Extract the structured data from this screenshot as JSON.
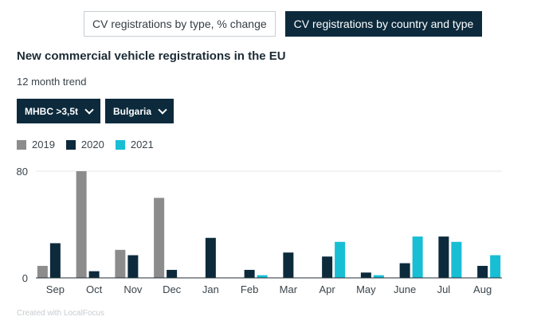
{
  "tabs": [
    {
      "label": "CV registrations by type, % change",
      "active": false
    },
    {
      "label": "CV registrations by country and type",
      "active": true
    }
  ],
  "title": "New commercial vehicle registrations in the EU",
  "subtitle": "12 month trend",
  "filters": {
    "type": "MHBC >3,5t",
    "country": "Bulgaria"
  },
  "footer": "Created with LocalFocus",
  "chart_data": {
    "type": "bar",
    "categories": [
      "Sep",
      "Oct",
      "Nov",
      "Dec",
      "Jan",
      "Feb",
      "Mar",
      "Apr",
      "May",
      "June",
      "Jul",
      "Aug"
    ],
    "series": [
      {
        "name": "2019",
        "color": "#8c8c8c",
        "values": [
          9,
          80,
          21,
          60,
          null,
          null,
          null,
          null,
          null,
          null,
          null,
          null
        ]
      },
      {
        "name": "2020",
        "color": "#0c2a3c",
        "values": [
          26,
          5,
          17,
          6,
          30,
          6,
          19,
          16,
          4,
          11,
          31,
          9
        ]
      },
      {
        "name": "2021",
        "color": "#18bed4",
        "values": [
          null,
          null,
          null,
          null,
          null,
          2,
          null,
          27,
          2,
          31,
          27,
          17
        ]
      }
    ],
    "ylim": [
      0,
      80
    ],
    "yticks": [
      0,
      80
    ],
    "grid": true,
    "legend": "top-left"
  }
}
